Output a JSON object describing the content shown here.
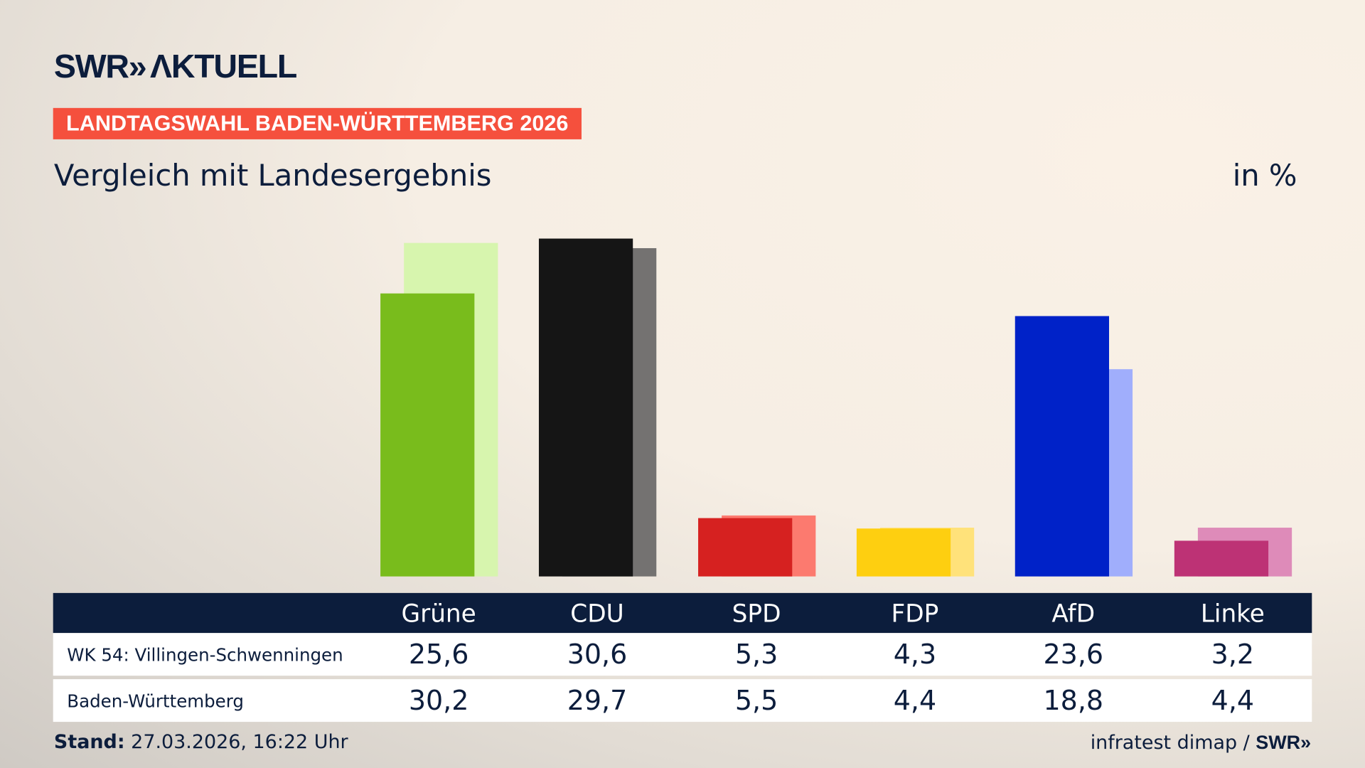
{
  "brand": {
    "logo_text": "SWR» AKTUELL"
  },
  "header": {
    "tag": "LANDTAGSWAHL BADEN-WÜRTTEMBERG 2026",
    "subtitle": "Vergleich mit Landesergebnis",
    "unit": "in %"
  },
  "chart_data": {
    "type": "bar",
    "categories": [
      "Grüne",
      "CDU",
      "SPD",
      "FDP",
      "AfD",
      "Linke"
    ],
    "series": [
      {
        "name": "WK 54: Villingen-Schwenningen",
        "values": [
          25.6,
          30.6,
          5.3,
          4.3,
          23.6,
          3.2
        ],
        "colors": [
          "#79bc1c",
          "#151515",
          "#d62120",
          "#fecf10",
          "#0022c8",
          "#bd3275"
        ]
      },
      {
        "name": "Baden-Württemberg",
        "values": [
          30.2,
          29.7,
          5.5,
          4.4,
          18.8,
          4.4
        ],
        "colors": [
          "#d7f5ae",
          "#747271",
          "#fc7a6f",
          "#ffe27a",
          "#a0aefc",
          "#de8bb9"
        ]
      }
    ],
    "display_values": [
      [
        "25,6",
        "30,6",
        "5,3",
        "4,3",
        "23,6",
        "3,2"
      ],
      [
        "30,2",
        "29,7",
        "5,5",
        "4,4",
        "18,8",
        "4,4"
      ]
    ],
    "grid": false
  },
  "footer": {
    "stand_label": "Stand:",
    "stand_value": " 27.03.2026, 16:22 Uhr",
    "source": "infratest dimap / ",
    "source_logo": "SWR»"
  }
}
